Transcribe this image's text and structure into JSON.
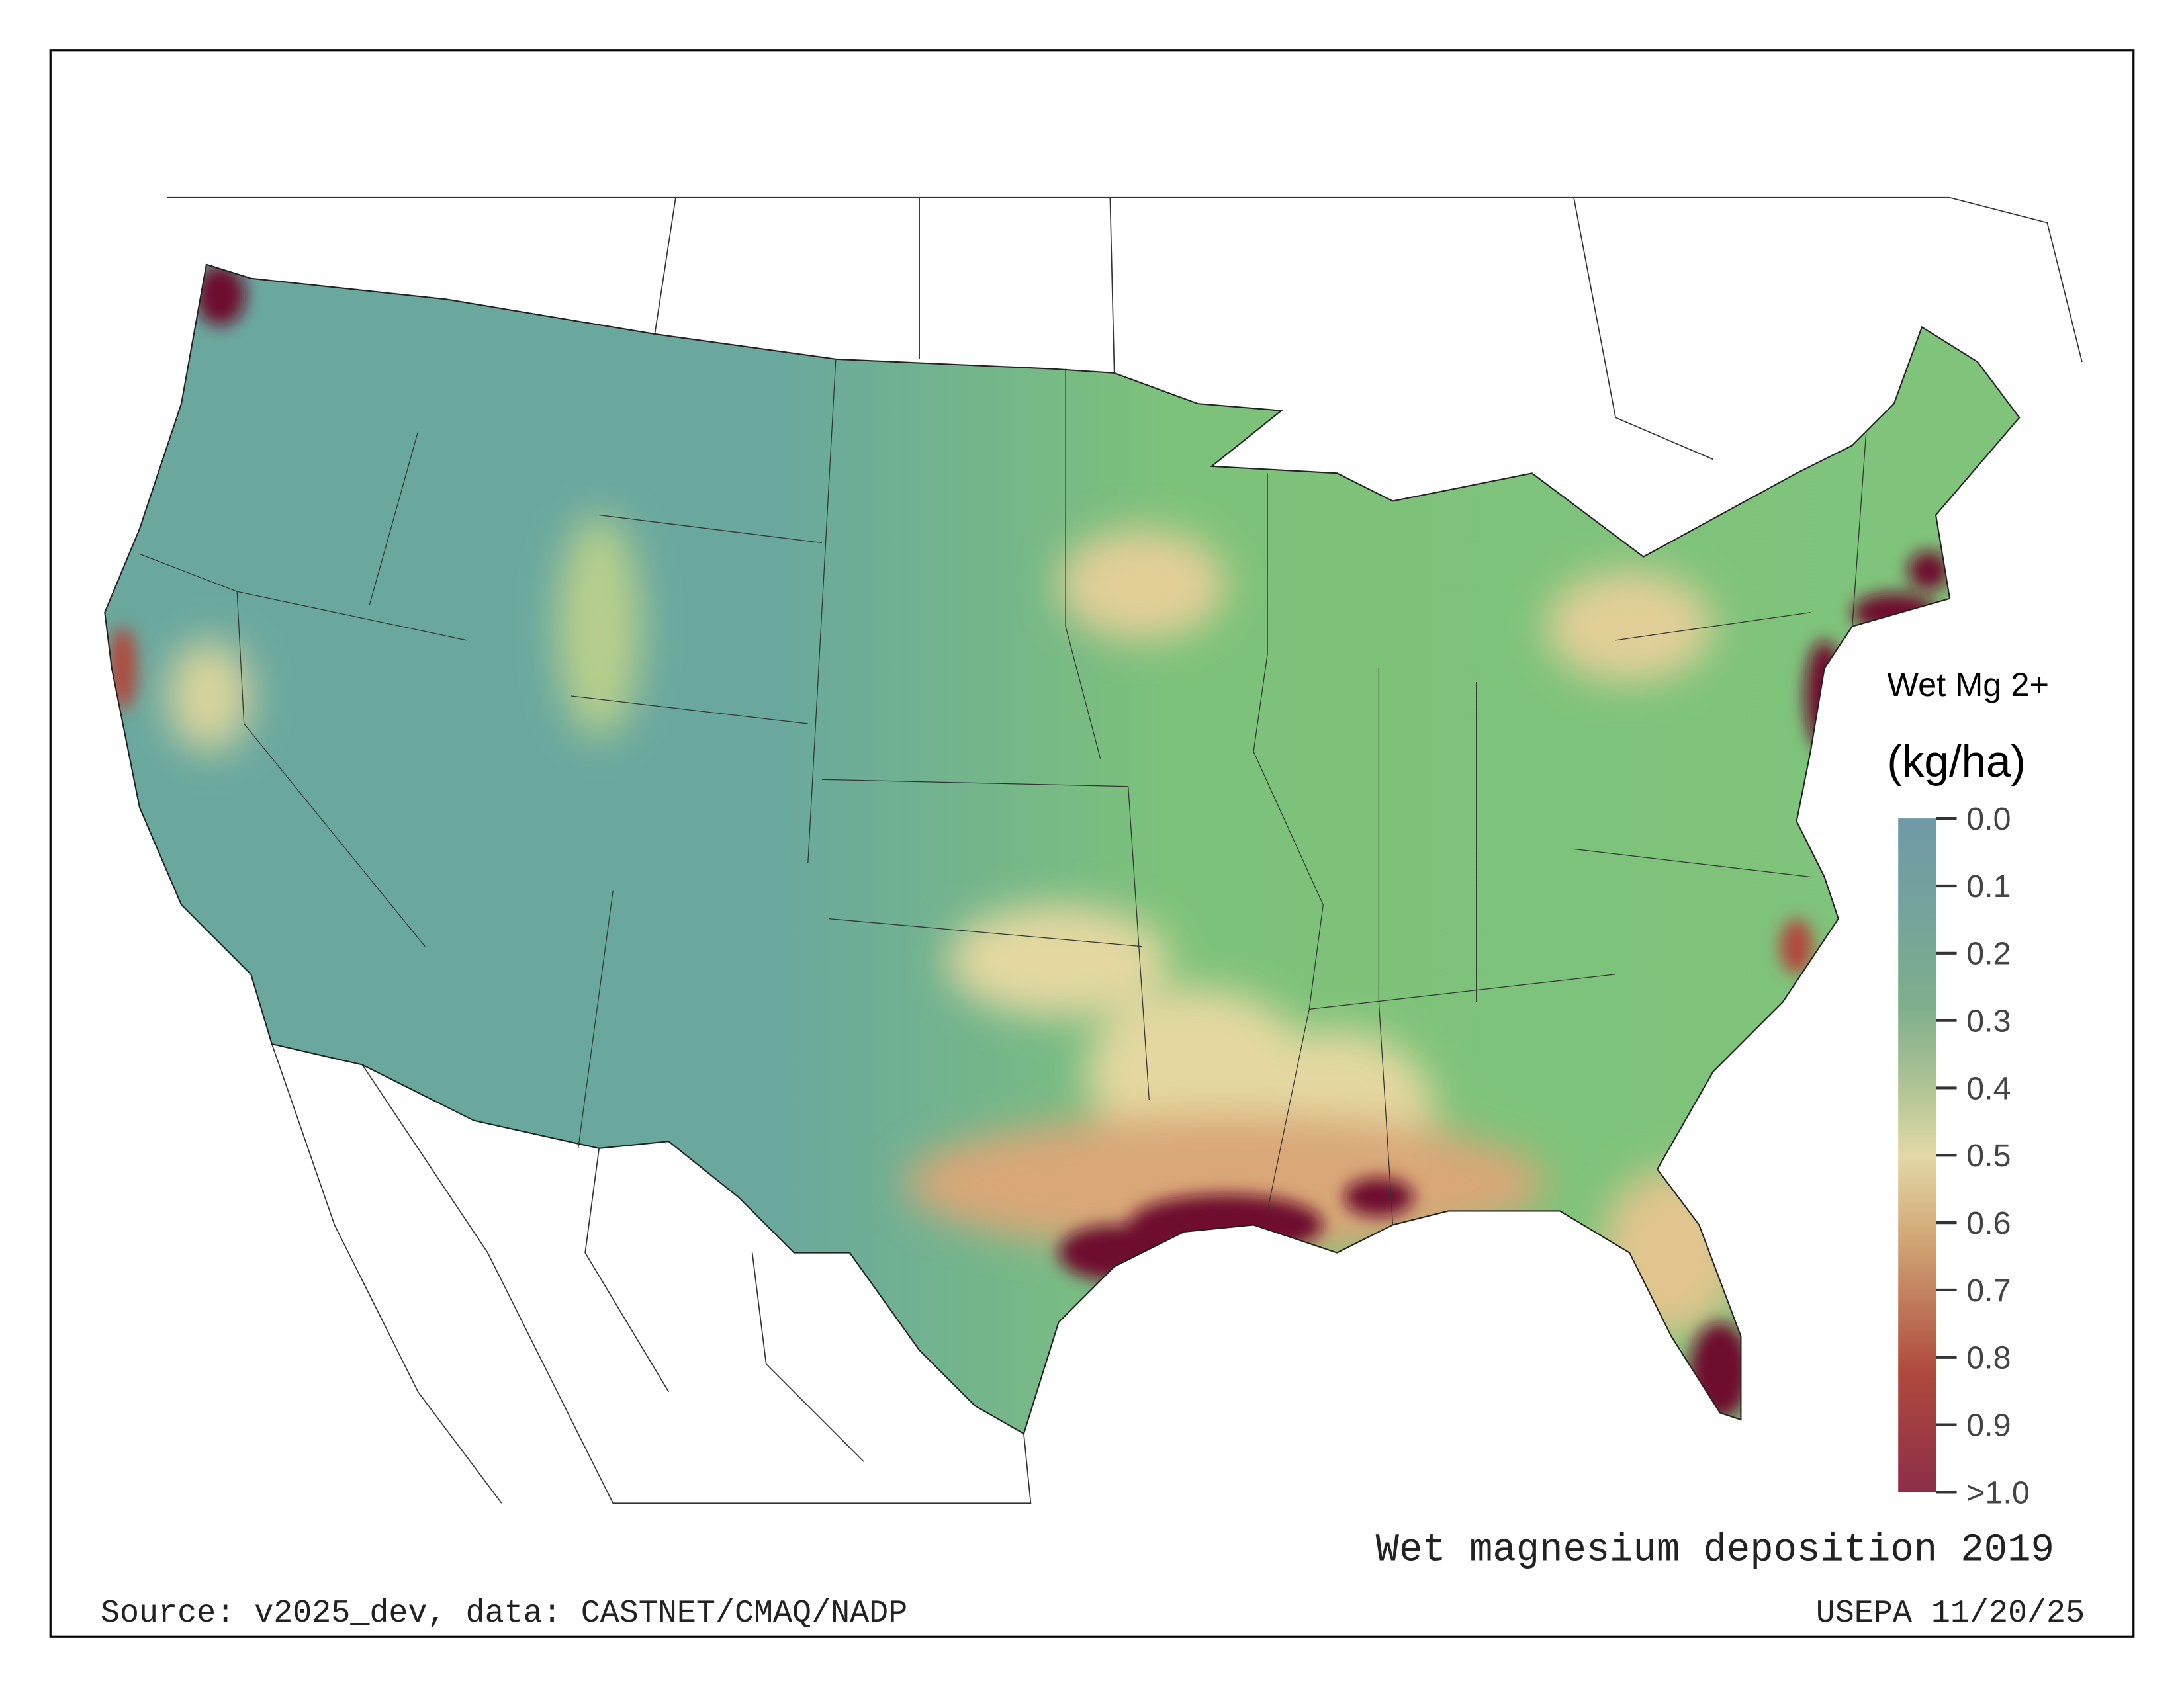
{
  "map": {
    "title": "Wet magnesium deposition 2019",
    "source": "Source: v2025_dev, data: CASTNET/CMAQ/NADP",
    "credit": "USEPA 11/20/25"
  },
  "legend": {
    "title": "Wet Mg 2+",
    "units": "(kg/ha)",
    "ticks": [
      "0.0",
      "0.1",
      "0.2",
      "0.3",
      "0.4",
      "0.5",
      "0.6",
      "0.7",
      "0.8",
      "0.9",
      ">1.0"
    ],
    "range": [
      0.0,
      1.0
    ],
    "colors": [
      "#7099a6",
      "#75a49a",
      "#7fae8c",
      "#b0c495",
      "#e2d9a6",
      "#d3a878",
      "#c07a5a",
      "#b04a3e",
      "#8c2e48"
    ]
  },
  "palette": {
    "low": "#6aa89e",
    "mid": "#7dc27a",
    "high_mid": "#e6d7a0",
    "max": "#6e0a2e"
  }
}
